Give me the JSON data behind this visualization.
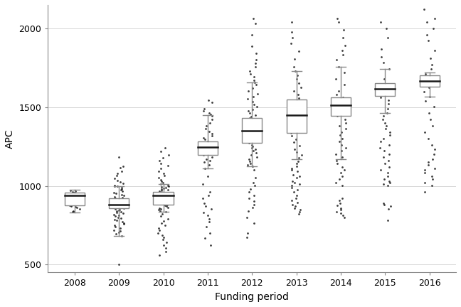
{
  "title": "",
  "xlabel": "Funding period",
  "ylabel": "APC",
  "years": [
    2008,
    2009,
    2010,
    2011,
    2012,
    2013,
    2014,
    2015,
    2016
  ],
  "ylim": [
    450,
    2150
  ],
  "yticks": [
    500,
    1000,
    1500,
    2000
  ],
  "background_color": "#ffffff",
  "box_stats": [
    {
      "q1": 875,
      "median": 940,
      "q3": 957,
      "whislo": 833,
      "whishi": 975,
      "points": [
        838,
        855,
        862,
        868,
        872,
        875,
        878,
        882,
        885,
        888,
        892,
        900,
        912,
        922,
        932,
        940,
        948,
        955,
        958,
        962,
        968,
        972,
        838,
        842
      ]
    },
    {
      "q1": 857,
      "median": 882,
      "q3": 920,
      "whislo": 682,
      "whishi": 1000,
      "points": [
        500,
        682,
        695,
        705,
        715,
        720,
        730,
        740,
        750,
        758,
        765,
        772,
        780,
        788,
        795,
        800,
        808,
        815,
        820,
        825,
        830,
        835,
        840,
        845,
        850,
        855,
        858,
        862,
        865,
        868,
        872,
        875,
        878,
        882,
        885,
        888,
        892,
        895,
        900,
        905,
        910,
        915,
        920,
        925,
        930,
        938,
        945,
        952,
        960,
        968,
        975,
        982,
        990,
        998,
        1000,
        1005,
        1015,
        1025,
        1035,
        1050,
        1065,
        1080,
        1095,
        1115,
        1125,
        1185
      ]
    },
    {
      "q1": 882,
      "median": 940,
      "q3": 962,
      "whislo": 838,
      "whishi": 1010,
      "points": [
        562,
        585,
        605,
        625,
        642,
        658,
        672,
        688,
        702,
        718,
        732,
        748,
        762,
        778,
        792,
        808,
        822,
        835,
        842,
        848,
        855,
        860,
        865,
        870,
        875,
        880,
        885,
        890,
        895,
        900,
        905,
        910,
        915,
        920,
        925,
        930,
        935,
        940,
        945,
        950,
        955,
        960,
        965,
        970,
        975,
        980,
        985,
        990,
        995,
        1000,
        1005,
        1012,
        1020,
        1030,
        1040,
        1052,
        1065,
        1080,
        1095,
        1112,
        1128,
        1145,
        1162,
        1178,
        1198,
        1218,
        1242
      ]
    },
    {
      "q1": 1195,
      "median": 1245,
      "q3": 1282,
      "whislo": 1112,
      "whishi": 1448,
      "points": [
        622,
        668,
        702,
        742,
        772,
        792,
        812,
        832,
        852,
        872,
        892,
        922,
        942,
        962,
        1012,
        1062,
        1112,
        1132,
        1152,
        1162,
        1172,
        1182,
        1195,
        1205,
        1215,
        1225,
        1235,
        1245,
        1255,
        1265,
        1275,
        1285,
        1295,
        1305,
        1318,
        1332,
        1348,
        1365,
        1382,
        1402,
        1422,
        1445,
        1455,
        1465,
        1478,
        1492,
        1532,
        1545
      ]
    },
    {
      "q1": 1272,
      "median": 1352,
      "q3": 1432,
      "whislo": 1125,
      "whishi": 1658,
      "points": [
        672,
        702,
        762,
        802,
        842,
        862,
        882,
        902,
        922,
        942,
        962,
        982,
        1002,
        1022,
        1052,
        1102,
        1125,
        1132,
        1145,
        1158,
        1172,
        1185,
        1198,
        1212,
        1225,
        1235,
        1242,
        1252,
        1262,
        1272,
        1282,
        1292,
        1302,
        1312,
        1322,
        1332,
        1342,
        1352,
        1362,
        1372,
        1382,
        1392,
        1402,
        1415,
        1425,
        1432,
        1442,
        1452,
        1462,
        1475,
        1488,
        1502,
        1518,
        1535,
        1552,
        1568,
        1585,
        1602,
        1622,
        1642,
        1658,
        1672,
        1692,
        1712,
        1732,
        1755,
        1778,
        1802,
        1842,
        1888,
        1962,
        2032,
        2062
      ]
    },
    {
      "q1": 1335,
      "median": 1452,
      "q3": 1548,
      "whislo": 1168,
      "whishi": 1728,
      "points": [
        822,
        835,
        848,
        858,
        872,
        882,
        895,
        908,
        922,
        942,
        962,
        978,
        988,
        1002,
        1012,
        1022,
        1032,
        1052,
        1062,
        1072,
        1092,
        1102,
        1112,
        1125,
        1142,
        1158,
        1178,
        1195,
        1215,
        1235,
        1255,
        1278,
        1298,
        1318,
        1335,
        1358,
        1382,
        1408,
        1432,
        1455,
        1482,
        1508,
        1532,
        1558,
        1582,
        1602,
        1625,
        1652,
        1678,
        1705,
        1728,
        1758,
        1808,
        1858,
        1908,
        1942,
        1978,
        2042
      ]
    },
    {
      "q1": 1445,
      "median": 1512,
      "q3": 1562,
      "whislo": 1168,
      "whishi": 1758,
      "points": [
        802,
        812,
        825,
        838,
        848,
        858,
        878,
        888,
        908,
        922,
        1002,
        1022,
        1042,
        1062,
        1082,
        1102,
        1122,
        1142,
        1162,
        1182,
        1202,
        1222,
        1242,
        1262,
        1282,
        1302,
        1322,
        1342,
        1362,
        1382,
        1402,
        1422,
        1445,
        1462,
        1482,
        1512,
        1542,
        1562,
        1582,
        1602,
        1642,
        1682,
        1722,
        1758,
        1802,
        1835,
        1862,
        1892,
        1942,
        1992,
        2042,
        2062
      ]
    },
    {
      "q1": 1572,
      "median": 1618,
      "q3": 1652,
      "whislo": 1462,
      "whishi": 1742,
      "points": [
        782,
        852,
        872,
        882,
        892,
        1002,
        1012,
        1022,
        1032,
        1042,
        1062,
        1082,
        1102,
        1122,
        1142,
        1162,
        1182,
        1202,
        1222,
        1242,
        1262,
        1282,
        1302,
        1322,
        1342,
        1362,
        1382,
        1402,
        1422,
        1445,
        1462,
        1492,
        1522,
        1545,
        1562,
        1582,
        1602,
        1642,
        1682,
        1742,
        1782,
        1822,
        1872,
        1942,
        2002,
        2042
      ]
    },
    {
      "q1": 1632,
      "median": 1668,
      "q3": 1702,
      "whislo": 1568,
      "whishi": 1722,
      "points": [
        962,
        1002,
        1022,
        1042,
        1062,
        1082,
        1102,
        1112,
        1132,
        1152,
        1172,
        1202,
        1232,
        1262,
        1302,
        1342,
        1382,
        1422,
        1462,
        1502,
        1542,
        1568,
        1598,
        1628,
        1652,
        1682,
        1712,
        1742,
        1772,
        1812,
        1862,
        1922,
        1962,
        2002,
        2042,
        2062,
        2122
      ]
    }
  ]
}
